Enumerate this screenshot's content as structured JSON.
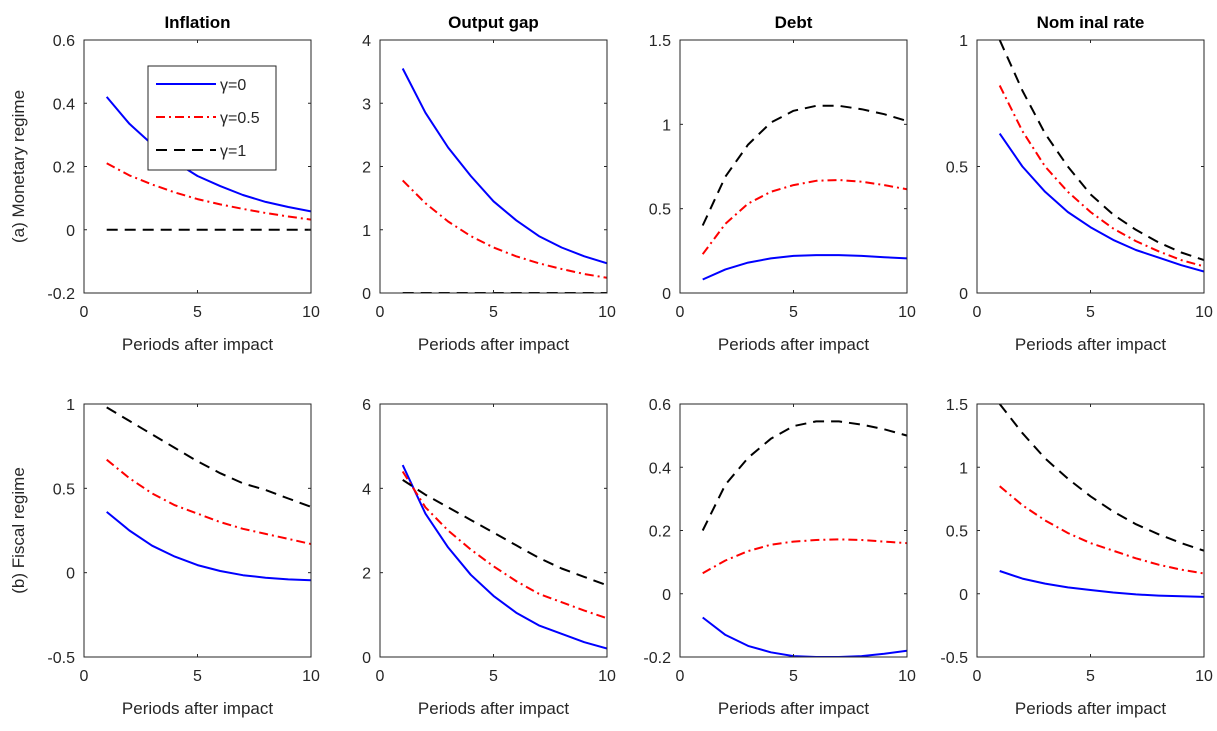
{
  "figure": {
    "row_labels": [
      "(a) Monetary regime",
      "(b) Fiscal regime"
    ],
    "column_titles": [
      "Inflation",
      "Output gap",
      "Debt",
      "Nom inal rate"
    ],
    "xlabel": "Periods after impact",
    "legend": [
      "γ=0",
      "γ=0.5",
      "γ=1"
    ]
  },
  "series_style": [
    {
      "color": "#0000ff",
      "dash": "solid"
    },
    {
      "color": "#ff0000",
      "dash": "dashdot"
    },
    {
      "color": "#000000",
      "dash": "dashed"
    }
  ],
  "chart_data": [
    {
      "type": "line",
      "row": 0,
      "col": 0,
      "title": "Inflation",
      "xlabel": "Periods after impact",
      "ylabel": "(a) Monetary regime",
      "xlim": [
        0,
        10
      ],
      "ylim": [
        -0.2,
        0.6
      ],
      "xticks": [
        0,
        5,
        10
      ],
      "yticks": [
        -0.2,
        0,
        0.2,
        0.4,
        0.6
      ],
      "ytick_labels": [
        "-0.2",
        "0",
        "0.2",
        "0.4",
        "0.6"
      ],
      "legend_position": "top-right",
      "x": [
        1,
        2,
        3,
        4,
        5,
        6,
        7,
        8,
        9,
        10
      ],
      "series": [
        {
          "name": "γ=0",
          "values": [
            0.42,
            0.335,
            0.27,
            0.215,
            0.17,
            0.138,
            0.11,
            0.088,
            0.072,
            0.058
          ]
        },
        {
          "name": "γ=0.5",
          "values": [
            0.21,
            0.172,
            0.143,
            0.118,
            0.097,
            0.08,
            0.066,
            0.053,
            0.042,
            0.032
          ]
        },
        {
          "name": "γ=1",
          "values": [
            0,
            0,
            0,
            0,
            0,
            0,
            0,
            0,
            0,
            0
          ]
        }
      ]
    },
    {
      "type": "line",
      "row": 0,
      "col": 1,
      "title": "Output gap",
      "xlabel": "Periods after impact",
      "xlim": [
        0,
        10
      ],
      "ylim": [
        0,
        4
      ],
      "xticks": [
        0,
        5,
        10
      ],
      "yticks": [
        0,
        1,
        2,
        3,
        4
      ],
      "ytick_labels": [
        "0",
        "1",
        "2",
        "3",
        "4"
      ],
      "x": [
        1,
        2,
        3,
        4,
        5,
        6,
        7,
        8,
        9,
        10
      ],
      "series": [
        {
          "name": "γ=0",
          "values": [
            3.55,
            2.85,
            2.3,
            1.85,
            1.45,
            1.15,
            0.9,
            0.72,
            0.58,
            0.47
          ]
        },
        {
          "name": "γ=0.5",
          "values": [
            1.78,
            1.42,
            1.13,
            0.9,
            0.72,
            0.58,
            0.47,
            0.38,
            0.3,
            0.24
          ]
        },
        {
          "name": "γ=1",
          "values": [
            0,
            0,
            0,
            0,
            0,
            0,
            0,
            0,
            0,
            0
          ]
        }
      ]
    },
    {
      "type": "line",
      "row": 0,
      "col": 2,
      "title": "Debt",
      "xlabel": "Periods after impact",
      "xlim": [
        0,
        10
      ],
      "ylim": [
        0,
        1.5
      ],
      "xticks": [
        0,
        5,
        10
      ],
      "yticks": [
        0,
        0.5,
        1,
        1.5
      ],
      "ytick_labels": [
        "0",
        "0.5",
        "1",
        "1.5"
      ],
      "x": [
        1,
        2,
        3,
        4,
        5,
        6,
        7,
        8,
        9,
        10
      ],
      "series": [
        {
          "name": "γ=0",
          "values": [
            0.08,
            0.14,
            0.18,
            0.205,
            0.22,
            0.225,
            0.225,
            0.22,
            0.212,
            0.205
          ]
        },
        {
          "name": "γ=0.5",
          "values": [
            0.23,
            0.41,
            0.53,
            0.6,
            0.64,
            0.665,
            0.67,
            0.66,
            0.64,
            0.615
          ]
        },
        {
          "name": "γ=1",
          "values": [
            0.4,
            0.69,
            0.88,
            1.01,
            1.08,
            1.11,
            1.11,
            1.09,
            1.06,
            1.02
          ]
        }
      ]
    },
    {
      "type": "line",
      "row": 0,
      "col": 3,
      "title": "Nom inal rate",
      "xlabel": "Periods after impact",
      "xlim": [
        0,
        10
      ],
      "ylim": [
        0,
        1
      ],
      "xticks": [
        0,
        5,
        10
      ],
      "yticks": [
        0,
        0.5,
        1
      ],
      "ytick_labels": [
        "0",
        "0.5",
        "1"
      ],
      "x": [
        1,
        2,
        3,
        4,
        5,
        6,
        7,
        8,
        9,
        10
      ],
      "series": [
        {
          "name": "γ=0",
          "values": [
            0.63,
            0.5,
            0.4,
            0.32,
            0.26,
            0.21,
            0.17,
            0.14,
            0.11,
            0.085
          ]
        },
        {
          "name": "γ=0.5",
          "values": [
            0.82,
            0.64,
            0.5,
            0.4,
            0.32,
            0.255,
            0.205,
            0.165,
            0.13,
            0.105
          ]
        },
        {
          "name": "γ=1",
          "values": [
            1.0,
            0.8,
            0.63,
            0.5,
            0.39,
            0.31,
            0.25,
            0.2,
            0.16,
            0.13
          ]
        }
      ]
    },
    {
      "type": "line",
      "row": 1,
      "col": 0,
      "title": "",
      "xlabel": "Periods after impact",
      "ylabel": "(b) Fiscal regime",
      "xlim": [
        0,
        10
      ],
      "ylim": [
        -0.5,
        1
      ],
      "xticks": [
        0,
        5,
        10
      ],
      "yticks": [
        -0.5,
        0,
        0.5,
        1
      ],
      "ytick_labels": [
        "-0.5",
        "0",
        "0.5",
        "1"
      ],
      "x": [
        1,
        2,
        3,
        4,
        5,
        6,
        7,
        8,
        9,
        10
      ],
      "series": [
        {
          "name": "γ=0",
          "values": [
            0.36,
            0.25,
            0.16,
            0.095,
            0.045,
            0.01,
            -0.015,
            -0.03,
            -0.04,
            -0.045
          ]
        },
        {
          "name": "γ=0.5",
          "values": [
            0.67,
            0.56,
            0.47,
            0.4,
            0.35,
            0.3,
            0.26,
            0.23,
            0.2,
            0.17
          ]
        },
        {
          "name": "γ=1",
          "values": [
            0.98,
            0.9,
            0.82,
            0.74,
            0.66,
            0.59,
            0.53,
            0.49,
            0.44,
            0.39
          ]
        }
      ]
    },
    {
      "type": "line",
      "row": 1,
      "col": 1,
      "title": "",
      "xlabel": "Periods after impact",
      "xlim": [
        0,
        10
      ],
      "ylim": [
        0,
        6
      ],
      "xticks": [
        0,
        5,
        10
      ],
      "yticks": [
        0,
        2,
        4,
        6
      ],
      "ytick_labels": [
        "0",
        "2",
        "4",
        "6"
      ],
      "x": [
        1,
        2,
        3,
        4,
        5,
        6,
        7,
        8,
        9,
        10
      ],
      "series": [
        {
          "name": "γ=0",
          "values": [
            4.55,
            3.4,
            2.6,
            1.95,
            1.45,
            1.05,
            0.75,
            0.55,
            0.35,
            0.2
          ]
        },
        {
          "name": "γ=0.5",
          "values": [
            4.4,
            3.55,
            3.0,
            2.55,
            2.15,
            1.8,
            1.5,
            1.3,
            1.1,
            0.92
          ]
        },
        {
          "name": "γ=1",
          "values": [
            4.2,
            3.85,
            3.55,
            3.25,
            2.95,
            2.65,
            2.35,
            2.1,
            1.9,
            1.7
          ]
        }
      ]
    },
    {
      "type": "line",
      "row": 1,
      "col": 2,
      "title": "",
      "xlabel": "Periods after impact",
      "xlim": [
        0,
        10
      ],
      "ylim": [
        -0.2,
        0.6
      ],
      "xticks": [
        0,
        5,
        10
      ],
      "yticks": [
        -0.2,
        0,
        0.2,
        0.4,
        0.6
      ],
      "ytick_labels": [
        "-0.2",
        "0",
        "0.2",
        "0.4",
        "0.6"
      ],
      "x": [
        1,
        2,
        3,
        4,
        5,
        6,
        7,
        8,
        9,
        10
      ],
      "series": [
        {
          "name": "γ=0",
          "values": [
            -0.075,
            -0.13,
            -0.165,
            -0.185,
            -0.197,
            -0.2,
            -0.2,
            -0.197,
            -0.19,
            -0.18
          ]
        },
        {
          "name": "γ=0.5",
          "values": [
            0.065,
            0.105,
            0.135,
            0.155,
            0.165,
            0.17,
            0.172,
            0.17,
            0.165,
            0.16
          ]
        },
        {
          "name": "γ=1",
          "values": [
            0.2,
            0.345,
            0.43,
            0.49,
            0.53,
            0.545,
            0.545,
            0.535,
            0.52,
            0.5
          ]
        }
      ]
    },
    {
      "type": "line",
      "row": 1,
      "col": 3,
      "title": "",
      "xlabel": "Periods after impact",
      "xlim": [
        0,
        10
      ],
      "ylim": [
        -0.5,
        1.5
      ],
      "xticks": [
        0,
        5,
        10
      ],
      "yticks": [
        -0.5,
        0,
        0.5,
        1,
        1.5
      ],
      "ytick_labels": [
        "-0.5",
        "0",
        "0.5",
        "1",
        "1.5"
      ],
      "x": [
        1,
        2,
        3,
        4,
        5,
        6,
        7,
        8,
        9,
        10
      ],
      "series": [
        {
          "name": "γ=0",
          "values": [
            0.18,
            0.12,
            0.08,
            0.05,
            0.03,
            0.01,
            -0.005,
            -0.015,
            -0.02,
            -0.025
          ]
        },
        {
          "name": "γ=0.5",
          "values": [
            0.85,
            0.7,
            0.58,
            0.48,
            0.4,
            0.34,
            0.28,
            0.23,
            0.19,
            0.16
          ]
        },
        {
          "name": "γ=1",
          "values": [
            1.5,
            1.27,
            1.07,
            0.91,
            0.77,
            0.65,
            0.55,
            0.47,
            0.4,
            0.34
          ]
        }
      ]
    }
  ]
}
